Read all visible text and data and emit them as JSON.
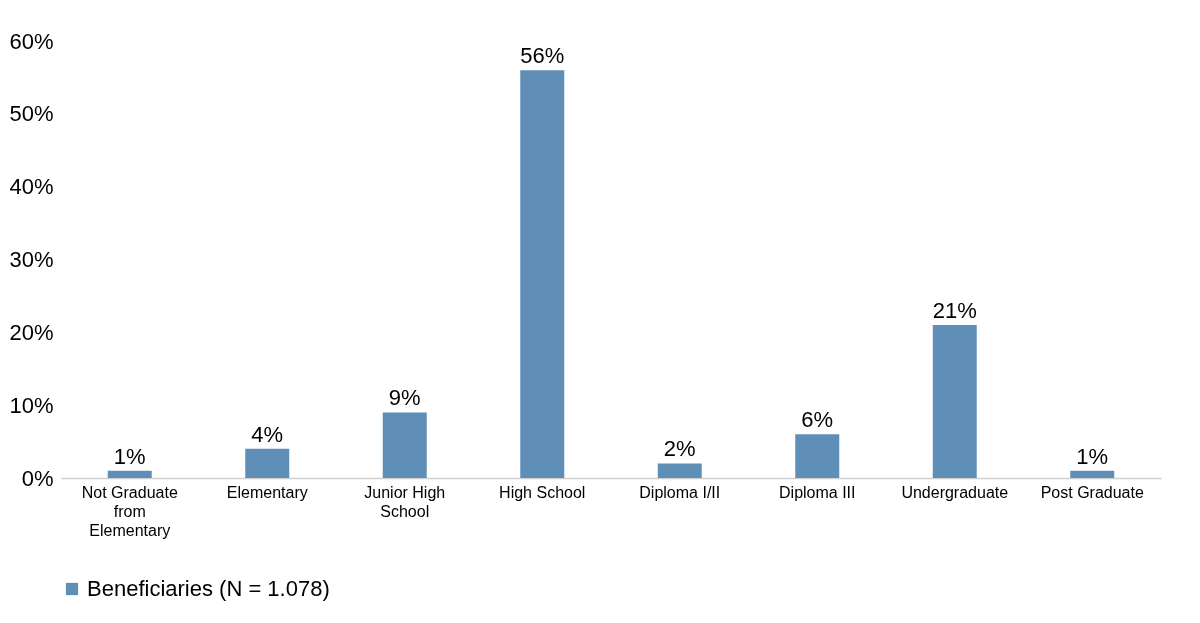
{
  "chart_data": {
    "type": "bar",
    "categories": [
      "Not Graduate from Elementary",
      "Elementary",
      "Junior High School",
      "High School",
      "Diploma I/II",
      "Diploma III",
      "Undergraduate",
      "Post Graduate"
    ],
    "series": [
      {
        "name": "Beneficiaries (N = 1.078)",
        "color": "#5f8fb7",
        "values": [
          1,
          4,
          9,
          56,
          2,
          6,
          21,
          1
        ],
        "value_labels": [
          "1%",
          "4%",
          "9%",
          "56%",
          "2%",
          "6%",
          "21%",
          "1%"
        ]
      }
    ],
    "ylim": [
      0,
      60
    ],
    "yticks": [
      {
        "value": 0,
        "label": "0%"
      },
      {
        "value": 10,
        "label": "10%"
      },
      {
        "value": 20,
        "label": "20%"
      },
      {
        "value": 30,
        "label": "30%"
      },
      {
        "value": 40,
        "label": "40%"
      },
      {
        "value": 50,
        "label": "50%"
      },
      {
        "value": 60,
        "label": "60%"
      }
    ],
    "grid": false,
    "legend": "bottom"
  }
}
